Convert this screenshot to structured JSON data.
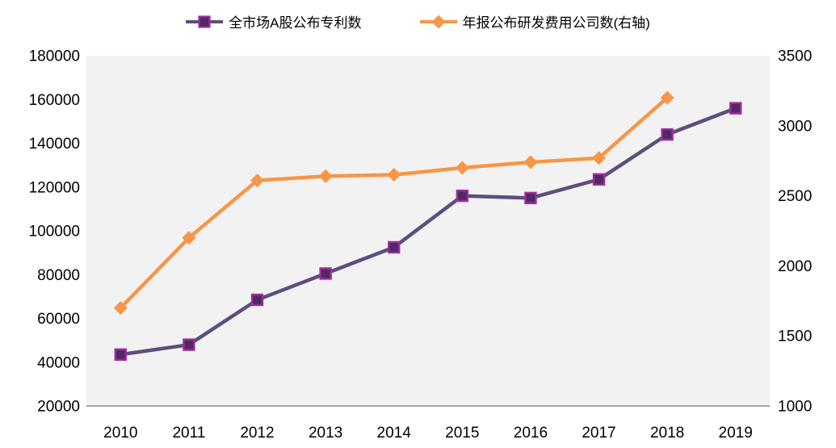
{
  "colors": {
    "page_background": "#ffffff",
    "plot_background": "#f2f2f2",
    "axis_line": "#a6a6a6",
    "tick_text": "#000000"
  },
  "chart_data": {
    "type": "line",
    "title": "",
    "xlabel": "",
    "ylabel_left": "",
    "ylabel_right": "",
    "grid": false,
    "legend_position": "top",
    "categories": [
      "2010",
      "2011",
      "2012",
      "2013",
      "2014",
      "2015",
      "2016",
      "2017",
      "2018",
      "2019"
    ],
    "series": [
      {
        "name": "全市场A股公布专利数",
        "axis": "left",
        "marker": "square",
        "line_color": "#5c4e7d",
        "marker_fill": "#4f2a63",
        "marker_stroke": "#a02c9e",
        "values": [
          43500,
          48000,
          68500,
          80500,
          92500,
          116000,
          115000,
          123500,
          144000,
          156000
        ]
      },
      {
        "name": "年报公布研发费用公司数(右轴)",
        "axis": "right",
        "marker": "diamond",
        "line_color": "#f79646",
        "marker_fill": "#f79646",
        "marker_stroke": "#f79646",
        "values": [
          1700,
          2200,
          2610,
          2640,
          2650,
          2700,
          2740,
          2770,
          3200,
          null
        ]
      }
    ],
    "left_axis": {
      "min": 20000,
      "max": 180000,
      "step": 20000,
      "tick_labels": [
        "20000",
        "40000",
        "60000",
        "80000",
        "100000",
        "120000",
        "140000",
        "160000",
        "180000"
      ]
    },
    "right_axis": {
      "min": 1000,
      "max": 3500,
      "step": 500,
      "tick_labels": [
        "1000",
        "1500",
        "2000",
        "2500",
        "3000",
        "3500"
      ]
    }
  }
}
